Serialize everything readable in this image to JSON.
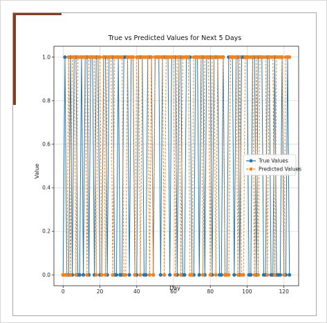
{
  "colors": {
    "accent": "#8a3b1b",
    "true_series": "#1f77b4",
    "pred_series": "#ff7f0e",
    "grid": "#d9d9d9"
  },
  "chart_data": {
    "type": "line",
    "title": "True vs Predicted Values for Next 5 Days",
    "xlabel": "Day",
    "ylabel": "Value",
    "xlim": [
      -5,
      128
    ],
    "ylim": [
      -0.05,
      1.05
    ],
    "xticks": [
      0,
      20,
      40,
      60,
      80,
      100,
      120
    ],
    "yticks": [
      0.0,
      0.2,
      0.4,
      0.6,
      0.8,
      1.0
    ],
    "ytick_labels": [
      "0.0",
      "0.2",
      "0.4",
      "0.6",
      "0.8",
      "1.0"
    ],
    "grid": true,
    "legend_placement": "center-right",
    "series": [
      {
        "name": "True Values",
        "style": "solid",
        "marker": "circle",
        "x": [
          0,
          1,
          2,
          3,
          4,
          5,
          6,
          7,
          8,
          9,
          10,
          11,
          12,
          13,
          14,
          15,
          16,
          17,
          18,
          19,
          20,
          21,
          22,
          23,
          24,
          25,
          26,
          27,
          28,
          29,
          30,
          31,
          32,
          33,
          34,
          35,
          36,
          37,
          38,
          39,
          40,
          41,
          42,
          43,
          44,
          45,
          46,
          47,
          48,
          49,
          50,
          51,
          52,
          53,
          54,
          55,
          56,
          57,
          58,
          59,
          60,
          61,
          62,
          63,
          64,
          65,
          66,
          67,
          68,
          69,
          70,
          71,
          72,
          73,
          74,
          75,
          76,
          77,
          78,
          79,
          80,
          81,
          82,
          83,
          84,
          85,
          86,
          87,
          88,
          89,
          90,
          91,
          92,
          93,
          94,
          95,
          96,
          97,
          98,
          99,
          100,
          101,
          102,
          103,
          104,
          105,
          106,
          107,
          108,
          109,
          110,
          111,
          112,
          113,
          114,
          115,
          116,
          117,
          118,
          119,
          120,
          121,
          122,
          123
        ],
        "values": [
          0,
          1,
          0,
          0,
          1,
          0,
          1,
          1,
          0,
          0,
          1,
          0,
          1,
          1,
          0,
          1,
          1,
          0,
          1,
          1,
          0,
          0,
          1,
          1,
          0,
          1,
          1,
          1,
          0,
          0,
          1,
          0,
          0,
          1,
          1,
          1,
          0,
          1,
          1,
          0,
          0,
          1,
          1,
          1,
          0,
          0,
          1,
          1,
          1,
          0,
          1,
          1,
          1,
          0,
          1,
          1,
          1,
          1,
          0,
          1,
          1,
          1,
          0,
          1,
          1,
          0,
          0,
          1,
          1,
          1,
          0,
          0,
          1,
          1,
          0,
          1,
          1,
          0,
          1,
          1,
          1,
          0,
          1,
          1,
          1,
          0,
          0,
          1,
          0,
          0,
          1,
          1,
          1,
          0,
          1,
          1,
          0,
          1,
          1,
          1,
          1,
          0,
          0,
          1,
          1,
          0,
          1,
          1,
          1,
          0,
          0,
          1,
          1,
          0,
          0,
          1,
          0,
          0,
          0,
          1,
          0,
          0,
          1,
          0
        ]
      },
      {
        "name": "Predicted Values",
        "style": "dashed",
        "marker": "circle",
        "x": [
          0,
          1,
          2,
          3,
          4,
          5,
          6,
          7,
          8,
          9,
          10,
          11,
          12,
          13,
          14,
          15,
          16,
          17,
          18,
          19,
          20,
          21,
          22,
          23,
          24,
          25,
          26,
          27,
          28,
          29,
          30,
          31,
          32,
          33,
          34,
          35,
          36,
          37,
          38,
          39,
          40,
          41,
          42,
          43,
          44,
          45,
          46,
          47,
          48,
          49,
          50,
          51,
          52,
          53,
          54,
          55,
          56,
          57,
          58,
          59,
          60,
          61,
          62,
          63,
          64,
          65,
          66,
          67,
          68,
          69,
          70,
          71,
          72,
          73,
          74,
          75,
          76,
          77,
          78,
          79,
          80,
          81,
          82,
          83,
          84,
          85,
          86,
          87,
          88,
          89,
          90,
          91,
          92,
          93,
          94,
          95,
          96,
          97,
          98,
          99,
          100,
          101,
          102,
          103,
          104,
          105,
          106,
          107,
          108,
          109,
          110,
          111,
          112,
          113,
          114,
          115,
          116,
          117,
          118,
          119,
          120,
          121,
          122,
          123
        ],
        "values": [
          0,
          0,
          0,
          1,
          0,
          1,
          1,
          0,
          1,
          1,
          1,
          1,
          1,
          0,
          1,
          1,
          1,
          1,
          0,
          1,
          1,
          0,
          1,
          0,
          1,
          1,
          1,
          0,
          1,
          1,
          1,
          1,
          1,
          0,
          0,
          1,
          1,
          1,
          1,
          0,
          1,
          1,
          0,
          1,
          1,
          1,
          1,
          0,
          1,
          0,
          1,
          1,
          1,
          1,
          1,
          0,
          1,
          1,
          1,
          1,
          1,
          0,
          1,
          1,
          0,
          1,
          1,
          1,
          1,
          0,
          0,
          1,
          1,
          1,
          1,
          1,
          0,
          1,
          1,
          1,
          0,
          1,
          1,
          0,
          1,
          1,
          1,
          1,
          0,
          0,
          0,
          1,
          1,
          1,
          1,
          0,
          1,
          0,
          0,
          1,
          1,
          1,
          1,
          1,
          0,
          1,
          0,
          1,
          1,
          1,
          1,
          0,
          1,
          1,
          1,
          0,
          1,
          1,
          1,
          1,
          0,
          1,
          1,
          1
        ]
      }
    ]
  }
}
